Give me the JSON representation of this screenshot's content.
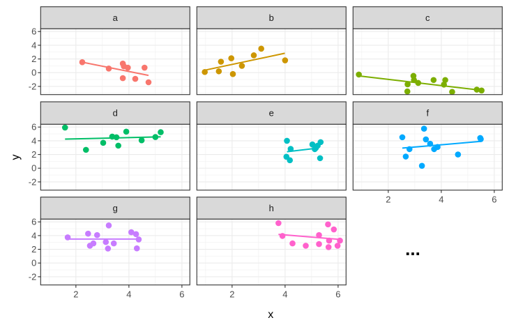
{
  "chart_data": {
    "type": "scatter",
    "facet": "wrap",
    "ncol": 3,
    "xlabel": "x",
    "ylabel": "y",
    "xlim": [
      0.67,
      6.3
    ],
    "ylim": [
      -3.2,
      6.4
    ],
    "x_ticks": [
      2,
      4,
      6
    ],
    "y_ticks": [
      -2,
      0,
      2,
      4,
      6
    ],
    "x_tick_labels": [
      "2",
      "4",
      "6"
    ],
    "y_tick_labels": [
      "-2",
      "0",
      "2",
      "4",
      "6"
    ],
    "grid": true,
    "legend": "none",
    "trend": "linear fit per panel",
    "ellipsis": "...",
    "panels": [
      {
        "label": "a",
        "color": "#F8766D",
        "x": [
          2.24,
          3.24,
          3.77,
          3.81,
          3.96,
          4.59,
          3.77,
          4.24,
          4.74
        ],
        "y": [
          1.53,
          0.6,
          1.33,
          0.93,
          0.73,
          0.73,
          -0.8,
          -0.9,
          -1.4
        ],
        "fit": {
          "x": [
            2.24,
            4.74
          ],
          "y": [
            1.53,
            -0.4
          ]
        }
      },
      {
        "label": "b",
        "color": "#CD9600",
        "x": [
          0.97,
          1.5,
          1.58,
          1.97,
          2.03,
          2.37,
          2.82,
          3.1,
          4.0
        ],
        "y": [
          0.1,
          0.2,
          1.6,
          2.1,
          -0.2,
          1.0,
          2.53,
          3.5,
          1.8
        ],
        "fit": {
          "x": [
            0.97,
            3.99
          ],
          "y": [
            0.36,
            2.83
          ]
        }
      },
      {
        "label": "c",
        "color": "#7CAE00",
        "x": [
          0.89,
          2.73,
          2.72,
          2.95,
          2.97,
          3.13,
          3.71,
          4.15,
          4.1,
          4.41,
          5.34,
          5.52
        ],
        "y": [
          -0.27,
          -1.7,
          -2.74,
          -0.47,
          -1.07,
          -1.5,
          -1.07,
          -1.07,
          -1.74,
          -2.8,
          -2.47,
          -2.6
        ],
        "fit": {
          "x": [
            0.89,
            5.52
          ],
          "y": [
            -0.47,
            -2.57
          ]
        }
      },
      {
        "label": "d",
        "color": "#00BE67",
        "x": [
          1.59,
          2.38,
          3.03,
          3.37,
          3.53,
          3.6,
          3.9,
          4.48,
          5.0,
          5.2
        ],
        "y": [
          5.93,
          2.68,
          3.7,
          4.61,
          4.51,
          3.29,
          5.33,
          4.07,
          4.54,
          5.25
        ],
        "fit": {
          "x": [
            1.59,
            5.2
          ],
          "y": [
            4.24,
            4.57
          ]
        }
      },
      {
        "label": "e",
        "color": "#00BFC4",
        "x": [
          4.07,
          4.21,
          4.05,
          4.18,
          5.03,
          5.12,
          5.23,
          5.34,
          5.32,
          5.16
        ],
        "y": [
          4.0,
          2.81,
          1.67,
          1.16,
          3.46,
          2.78,
          3.29,
          3.8,
          1.46,
          2.95
        ],
        "fit": {
          "x": [
            4.07,
            5.27
          ],
          "y": [
            2.4,
            2.95
          ]
        }
      },
      {
        "label": "f",
        "color": "#00A9FF",
        "x": [
          2.53,
          3.35,
          3.42,
          3.58,
          2.8,
          2.66,
          3.27,
          3.73,
          3.86,
          4.63,
          5.47,
          5.49
        ],
        "y": [
          4.51,
          5.76,
          4.2,
          3.56,
          2.78,
          1.7,
          0.35,
          2.78,
          3.09,
          2.0,
          4.41,
          4.24
        ],
        "fit": {
          "x": [
            2.53,
            5.49
          ],
          "y": [
            2.93,
            3.91
          ]
        }
      },
      {
        "label": "g",
        "color": "#C77CFF",
        "x": [
          1.69,
          2.46,
          2.8,
          3.24,
          2.53,
          2.66,
          3.13,
          3.43,
          3.21,
          4.09,
          4.27,
          4.37,
          4.3
        ],
        "y": [
          3.74,
          4.28,
          4.08,
          5.48,
          2.52,
          2.86,
          3.06,
          2.86,
          2.11,
          4.49,
          4.21,
          3.44,
          2.14
        ],
        "fit": {
          "x": [
            1.69,
            4.38
          ],
          "y": [
            3.5,
            3.5
          ]
        }
      },
      {
        "label": "h",
        "color": "#FF61CC",
        "x": [
          3.75,
          3.9,
          4.28,
          4.78,
          5.28,
          5.28,
          5.62,
          5.84,
          5.66,
          5.64,
          5.98,
          6.07
        ],
        "y": [
          5.82,
          3.95,
          2.86,
          2.52,
          4.08,
          2.76,
          5.64,
          4.9,
          3.27,
          2.32,
          2.52,
          3.27
        ],
        "fit": {
          "x": [
            3.75,
            6.07
          ],
          "y": [
            4.18,
            3.44
          ]
        }
      }
    ]
  }
}
